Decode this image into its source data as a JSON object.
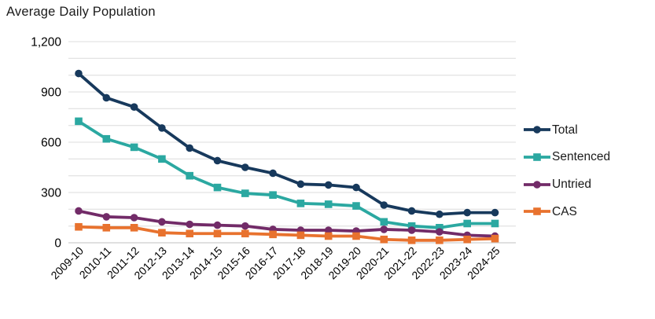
{
  "chart_data": {
    "type": "line",
    "title": "Average Daily Population",
    "categories": [
      "2009-10",
      "2010-11",
      "2011-12",
      "2012-13",
      "2013-14",
      "2014-15",
      "2015-16",
      "2016-17",
      "2017-18",
      "2018-19",
      "2019-20",
      "2020-21",
      "2021-22",
      "2022-23",
      "2023-24",
      "2024-25"
    ],
    "series": [
      {
        "name": "Total",
        "marker": "circle",
        "color": "#17395C",
        "values": [
          1010,
          865,
          810,
          685,
          565,
          490,
          450,
          415,
          350,
          345,
          330,
          225,
          190,
          170,
          180,
          180
        ]
      },
      {
        "name": "Sentenced",
        "marker": "square",
        "color": "#2BA8A1",
        "values": [
          725,
          620,
          570,
          500,
          400,
          330,
          295,
          285,
          235,
          230,
          220,
          125,
          100,
          90,
          115,
          115
        ]
      },
      {
        "name": "Untried",
        "marker": "circle",
        "color": "#722B68",
        "values": [
          190,
          155,
          150,
          125,
          110,
          105,
          100,
          80,
          75,
          75,
          70,
          80,
          75,
          65,
          45,
          40
        ]
      },
      {
        "name": "CAS",
        "marker": "square",
        "color": "#E8722E",
        "values": [
          95,
          90,
          90,
          60,
          55,
          55,
          55,
          50,
          45,
          40,
          40,
          20,
          15,
          15,
          20,
          25
        ]
      }
    ],
    "ylim": [
      0,
      1200
    ],
    "y_gridline_step": 100,
    "y_label_step": 300,
    "y_tick_labels": [
      "0",
      "300",
      "600",
      "900",
      "1,200"
    ],
    "grid": "horizontal-only",
    "legend_position": "right"
  },
  "colors": {
    "gridline": "#E4E4E4",
    "axis_line": "#CDCDCD",
    "text": "#000000",
    "background": "#FFFFFF"
  }
}
